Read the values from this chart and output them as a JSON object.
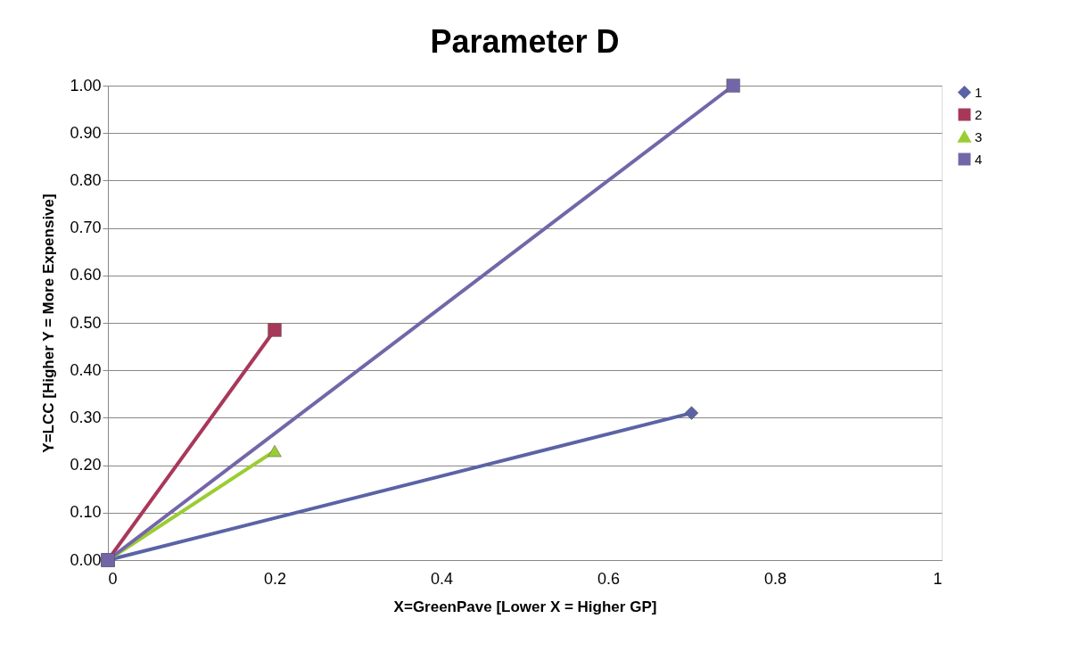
{
  "chart_data": {
    "type": "line",
    "title": "Parameter D",
    "xlabel": "X=GreenPave [Lower X = Higher GP]",
    "ylabel": "Y=LCC [Higher Y = More Expensive]",
    "xlim": [
      0,
      1
    ],
    "xticks": [
      0,
      0.2,
      0.4,
      0.6,
      0.8,
      1
    ],
    "ylim": [
      0,
      1
    ],
    "yticks": [
      {
        "value": 0,
        "label": "0.00"
      },
      {
        "value": 0.1,
        "label": "0.10"
      },
      {
        "value": 0.2,
        "label": "0.20"
      },
      {
        "value": 0.3,
        "label": "0.30"
      },
      {
        "value": 0.4,
        "label": "0.40"
      },
      {
        "value": 0.5,
        "label": "0.50"
      },
      {
        "value": 0.6,
        "label": "0.60"
      },
      {
        "value": 0.7,
        "label": "0.70"
      },
      {
        "value": 0.8,
        "label": "0.80"
      },
      {
        "value": 0.9,
        "label": "0.90"
      },
      {
        "value": 1,
        "label": "1.00"
      }
    ],
    "grid": "y",
    "legend": "right",
    "line_style": "solid",
    "series": [
      {
        "name": "1",
        "color": "#5b63a6",
        "marker": "diamond",
        "x": [
          0,
          0.7
        ],
        "values": [
          0,
          0.31
        ]
      },
      {
        "name": "2",
        "color": "#a8385a",
        "marker": "square",
        "x": [
          0,
          0.2
        ],
        "values": [
          0,
          0.485
        ]
      },
      {
        "name": "3",
        "color": "#9acd32",
        "marker": "triangle",
        "x": [
          0,
          0.2
        ],
        "values": [
          0,
          0.23
        ]
      },
      {
        "name": "4",
        "color": "#7366a8",
        "marker": "square",
        "x": [
          0,
          0.75
        ],
        "values": [
          0,
          1.0
        ]
      }
    ]
  }
}
